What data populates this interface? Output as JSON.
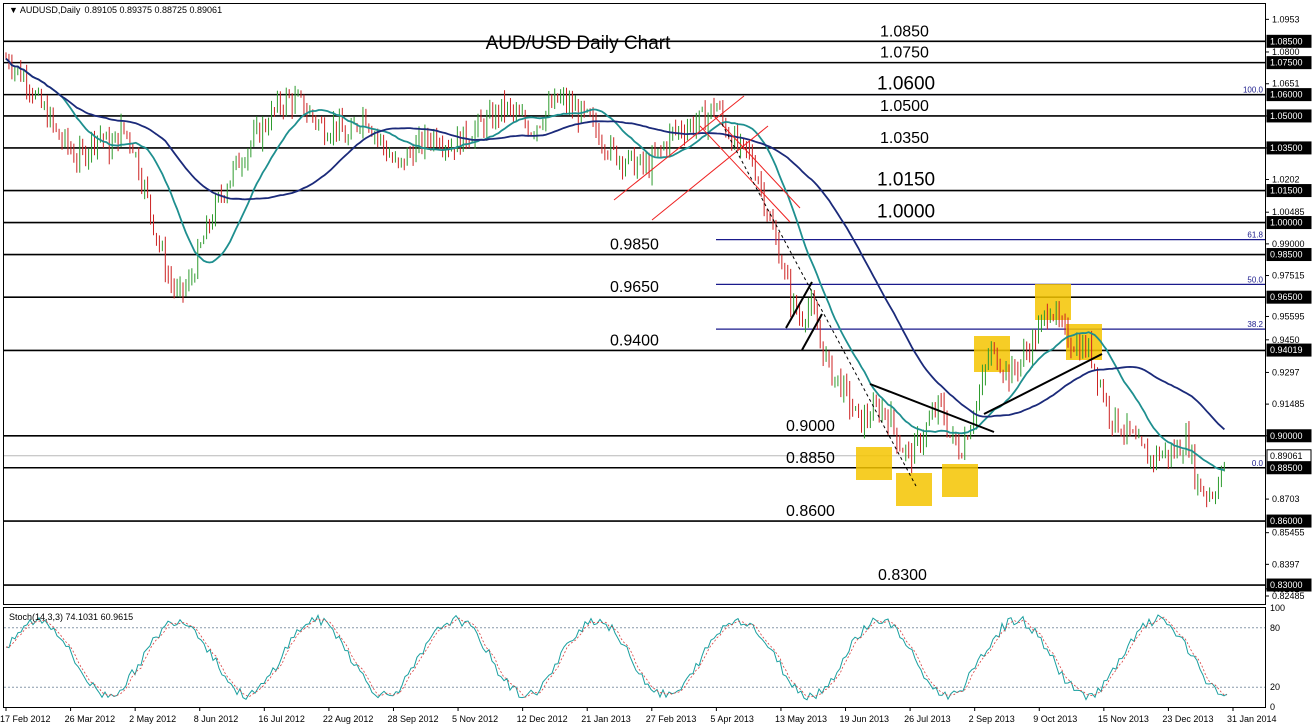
{
  "header": {
    "symbol_text": "AUDUSD,Daily",
    "ohlc_text": "0.89105 0.89375 0.88725 0.89061"
  },
  "chart_data": {
    "type": "candlestick",
    "title": "AUD/USD Daily Chart",
    "ylim": [
      0.8211,
      1.1025
    ],
    "price_ticks": [
      1.0953,
      1.08,
      1.0651,
      1.05,
      1.035,
      1.0202,
      1.00485,
      0.99,
      0.97515,
      0.95595,
      0.945,
      0.9297,
      0.91485,
      0.9,
      0.8703,
      0.85455,
      0.8397,
      0.8282,
      0.82485
    ],
    "labelled_levels": [
      {
        "value": "1.0850",
        "text": "1.08500"
      },
      {
        "value": "1.0750",
        "text": "1.07500"
      },
      {
        "value": "1.0600",
        "text": "1.06000"
      },
      {
        "value": "1.0500",
        "text": "1.05000"
      },
      {
        "value": "1.0350",
        "text": "1.03500"
      },
      {
        "value": "1.0150",
        "text": "1.01500"
      },
      {
        "value": "1.0000",
        "text": "1.00000"
      },
      {
        "value": "0.9850",
        "text": "0.98500"
      },
      {
        "value": "0.9650",
        "text": "0.96500"
      },
      {
        "value": "0.94019",
        "text": "0.94019"
      },
      {
        "value": "0.9000",
        "text": "0.90000"
      },
      {
        "value": "0.89061",
        "text": "0.89061"
      },
      {
        "value": "0.8850",
        "text": "0.88500"
      },
      {
        "value": "0.8600",
        "text": "0.86000"
      },
      {
        "value": "0.8300",
        "text": "0.83000"
      }
    ],
    "level_annotations": [
      {
        "price": 1.085,
        "label": "1.0850",
        "big": false
      },
      {
        "price": 1.075,
        "label": "1.0750",
        "big": false
      },
      {
        "price": 1.06,
        "label": "1.0600",
        "big": true
      },
      {
        "price": 1.05,
        "label": "1.0500",
        "big": false
      },
      {
        "price": 1.035,
        "label": "1.0350",
        "big": false
      },
      {
        "price": 1.015,
        "label": "1.0150",
        "big": true
      },
      {
        "price": 1.0,
        "label": "1.0000",
        "big": true
      },
      {
        "price": 0.985,
        "label": "0.9850",
        "big": false
      },
      {
        "price": 0.965,
        "label": "0.9650",
        "big": false
      },
      {
        "price": 0.94,
        "label": "0.9400",
        "big": false
      },
      {
        "price": 0.9,
        "label": "0.9000",
        "big": false
      },
      {
        "price": 0.885,
        "label": "0.8850",
        "big": false
      },
      {
        "price": 0.86,
        "label": "0.8600",
        "big": false
      },
      {
        "price": 0.83,
        "label": "0.8300",
        "big": false
      }
    ],
    "fibonacci": [
      {
        "label": "100.0",
        "price": 1.06
      },
      {
        "label": "61.8",
        "price": 0.992
      },
      {
        "label": "50.0",
        "price": 0.971
      },
      {
        "label": "38.2",
        "price": 0.95
      },
      {
        "label": "0.0",
        "price": 0.885
      }
    ],
    "date_labels": [
      "17 Feb 2012",
      "26 Mar 2012",
      "2 May 2012",
      "8 Jun 2012",
      "16 Jul 2012",
      "22 Aug 2012",
      "28 Sep 2012",
      "5 Nov 2012",
      "12 Dec 2012",
      "21 Jan 2013",
      "27 Feb 2013",
      "5 Apr 2013",
      "13 May 2013",
      "19 Jun 2013",
      "26 Jul 2013",
      "2 Sep 2013",
      "9 Oct 2013",
      "15 Nov 2013",
      "23 Dec 2013",
      "31 Jan 2014"
    ],
    "price_path": [
      [
        0,
        1.074
      ],
      [
        8,
        1.078
      ],
      [
        14,
        1.073
      ],
      [
        20,
        1.07
      ],
      [
        28,
        1.067
      ],
      [
        38,
        1.056
      ],
      [
        48,
        1.05
      ],
      [
        58,
        1.04
      ],
      [
        68,
        1.036
      ],
      [
        76,
        1.03
      ],
      [
        84,
        1.032
      ],
      [
        92,
        1.039
      ],
      [
        100,
        1.042
      ],
      [
        110,
        1.034
      ],
      [
        122,
        1.044
      ],
      [
        132,
        1.038
      ],
      [
        144,
        1.017
      ],
      [
        156,
        0.995
      ],
      [
        168,
        0.975
      ],
      [
        178,
        0.965
      ],
      [
        190,
        0.972
      ],
      [
        202,
        0.99
      ],
      [
        214,
        1.005
      ],
      [
        226,
        1.018
      ],
      [
        238,
        1.028
      ],
      [
        250,
        1.037
      ],
      [
        262,
        1.044
      ],
      [
        274,
        1.052
      ],
      [
        286,
        1.058
      ],
      [
        300,
        1.056
      ],
      [
        312,
        1.05
      ],
      [
        324,
        1.044
      ],
      [
        336,
        1.046
      ],
      [
        348,
        1.038
      ],
      [
        356,
        1.046
      ],
      [
        364,
        1.052
      ],
      [
        374,
        1.043
      ],
      [
        386,
        1.034
      ],
      [
        398,
        1.025
      ],
      [
        410,
        1.033
      ],
      [
        422,
        1.037
      ],
      [
        436,
        1.042
      ],
      [
        450,
        1.036
      ],
      [
        462,
        1.039
      ],
      [
        476,
        1.044
      ],
      [
        490,
        1.048
      ],
      [
        504,
        1.054
      ],
      [
        518,
        1.049
      ],
      [
        532,
        1.044
      ],
      [
        546,
        1.052
      ],
      [
        560,
        1.058
      ],
      [
        574,
        1.053
      ],
      [
        588,
        1.048
      ],
      [
        600,
        1.041
      ],
      [
        612,
        1.033
      ],
      [
        624,
        1.03
      ],
      [
        636,
        1.027
      ],
      [
        648,
        1.026
      ],
      [
        660,
        1.033
      ],
      [
        672,
        1.042
      ],
      [
        684,
        1.045
      ],
      [
        696,
        1.047
      ],
      [
        706,
        1.049
      ],
      [
        716,
        1.056
      ],
      [
        724,
        1.046
      ],
      [
        732,
        1.04
      ],
      [
        740,
        1.034
      ],
      [
        750,
        1.032
      ],
      [
        760,
        1.019
      ],
      [
        770,
        1.0
      ],
      [
        780,
        0.985
      ],
      [
        790,
        0.965
      ],
      [
        800,
        0.955
      ],
      [
        810,
        0.962
      ],
      [
        820,
        0.945
      ],
      [
        830,
        0.93
      ],
      [
        840,
        0.925
      ],
      [
        850,
        0.915
      ],
      [
        860,
        0.906
      ],
      [
        870,
        0.91
      ],
      [
        880,
        0.913
      ],
      [
        890,
        0.909
      ],
      [
        900,
        0.896
      ],
      [
        910,
        0.89
      ],
      [
        920,
        0.898
      ],
      [
        930,
        0.907
      ],
      [
        940,
        0.915
      ],
      [
        950,
        0.9
      ],
      [
        960,
        0.893
      ],
      [
        970,
        0.906
      ],
      [
        980,
        0.92
      ],
      [
        990,
        0.94
      ],
      [
        1000,
        0.935
      ],
      [
        1010,
        0.928
      ],
      [
        1020,
        0.935
      ],
      [
        1030,
        0.942
      ],
      [
        1040,
        0.95
      ],
      [
        1050,
        0.962
      ],
      [
        1060,
        0.95
      ],
      [
        1070,
        0.945
      ],
      [
        1080,
        0.942
      ],
      [
        1090,
        0.94
      ],
      [
        1100,
        0.925
      ],
      [
        1110,
        0.91
      ],
      [
        1120,
        0.905
      ],
      [
        1130,
        0.9
      ],
      [
        1140,
        0.893
      ],
      [
        1150,
        0.889
      ],
      [
        1160,
        0.892
      ],
      [
        1170,
        0.891
      ],
      [
        1180,
        0.895
      ],
      [
        1188,
        0.899
      ],
      [
        1196,
        0.879
      ],
      [
        1204,
        0.874
      ],
      [
        1210,
        0.873
      ],
      [
        1218,
        0.877
      ],
      [
        1227,
        0.89
      ]
    ],
    "indicator": {
      "label": "Stoch(14,3,3) 74.1031 60.9615",
      "ylim": [
        0,
        100
      ],
      "ticks": [
        "100",
        "80",
        "20",
        "0"
      ],
      "levels": [
        80,
        20
      ],
      "last_values": [
        74.1031,
        60.9615
      ]
    }
  }
}
